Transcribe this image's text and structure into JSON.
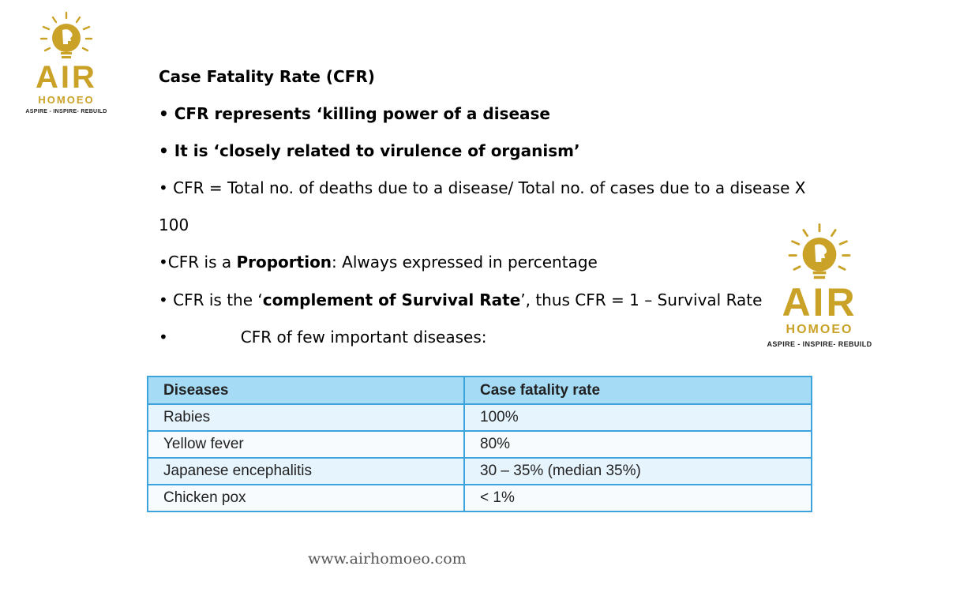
{
  "logo": {
    "name": "AIR",
    "subtitle": "HOMOEO",
    "tagline": "ASPIRE - INSPIRE- REBUILD",
    "icon": "lightbulb-head-icon",
    "color": "#c9a227"
  },
  "content": {
    "title": "Case Fatality Rate (CFR)",
    "bullet1": "• CFR represents ‘killing power of a disease",
    "bullet2": "• It is ‘closely related to virulence of organism’",
    "bullet3": "• CFR = Total no. of deaths due to a disease/ Total no. of cases due to a disease  X",
    "bullet3_cont": "100",
    "bullet4": {
      "prefix": "•CFR is a ",
      "bold": "Proportion",
      "suffix": ": Always expressed in percentage"
    },
    "bullet5": {
      "prefix": "• CFR is the ‘",
      "bold": "complement of Survival Rate",
      "suffix": "’, thus CFR = 1 – Survival Rate"
    },
    "bullet6": {
      "marker": "•",
      "text": "CFR of few important diseases:"
    }
  },
  "table": {
    "headers": [
      "Diseases",
      "Case fatality rate"
    ],
    "rows": [
      [
        "Rabies",
        "100%"
      ],
      [
        "Yellow fever",
        "80%"
      ],
      [
        "Japanese encephalitis",
        "30 – 35% (median 35%)"
      ],
      [
        "Chicken pox",
        "< 1%"
      ]
    ],
    "header_color": "#a6dbf6",
    "border_color": "#3da3dd"
  },
  "footer": {
    "website": "www.airhomoeo.com"
  }
}
